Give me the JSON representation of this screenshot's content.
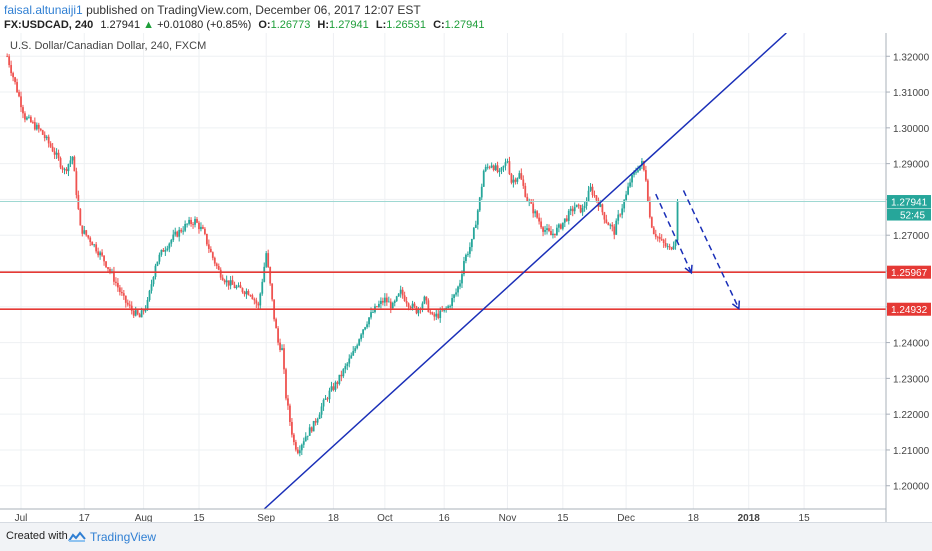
{
  "header": {
    "author": "faisal.altunaiji1",
    "published": "published on TradingView.com, December 06, 2017 12:07 EST"
  },
  "ohlc": {
    "symbol": "FX:USDCAD, 240",
    "last": "1.27941",
    "arrow": "▲",
    "change": "+0.01080 (+0.85%)",
    "o_label": "O:",
    "o": "1.26773",
    "h_label": "H:",
    "h": "1.27941",
    "l_label": "L:",
    "l": "1.26531",
    "c_label": "C:",
    "c": "1.27941"
  },
  "footer": {
    "created_with": "Created with",
    "brand": "TradingView",
    "logo_icon": "tradingview-logo-icon"
  },
  "colors": {
    "up": "#26a69a",
    "down": "#ef5350",
    "trend": "#1a2fb8",
    "level": "#e53935",
    "grid": "#eef0f3"
  },
  "chart_data": {
    "type": "candlestick",
    "title": "U.S. Dollar/Canadian Dollar, 240, FXCM",
    "ylim": [
      1.1935,
      1.3265
    ],
    "y_ticks": [
      "1.32000",
      "1.31000",
      "1.30000",
      "1.29000",
      "1.28000",
      "1.27000",
      "1.26000",
      "1.25000",
      "1.24000",
      "1.23000",
      "1.22000",
      "1.21000",
      "1.20000"
    ],
    "x_ticks": [
      {
        "label": "Jul",
        "day": 0
      },
      {
        "label": "17",
        "day": 16
      },
      {
        "label": "Aug",
        "day": 31
      },
      {
        "label": "15",
        "day": 45
      },
      {
        "label": "Sep",
        "day": 62
      },
      {
        "label": "18",
        "day": 79
      },
      {
        "label": "Oct",
        "day": 92
      },
      {
        "label": "16",
        "day": 107
      },
      {
        "label": "Nov",
        "day": 123
      },
      {
        "label": "15",
        "day": 137
      },
      {
        "label": "Dec",
        "day": 153
      },
      {
        "label": "18",
        "day": 170
      },
      {
        "label": "2018",
        "day": 184
      },
      {
        "label": "15",
        "day": 198
      }
    ],
    "path": [
      [
        -3.5,
        1.32
      ],
      [
        1,
        1.303
      ],
      [
        5,
        1.299
      ],
      [
        8,
        1.294
      ],
      [
        11,
        1.288
      ],
      [
        13,
        1.292
      ],
      [
        15,
        1.272
      ],
      [
        18,
        1.268
      ],
      [
        21,
        1.263
      ],
      [
        23,
        1.259
      ],
      [
        26,
        1.252
      ],
      [
        28,
        1.249
      ],
      [
        30,
        1.247
      ],
      [
        32,
        1.251
      ],
      [
        34,
        1.262
      ],
      [
        36,
        1.266
      ],
      [
        39,
        1.27
      ],
      [
        42,
        1.273
      ],
      [
        44,
        1.274
      ],
      [
        46,
        1.271
      ],
      [
        48,
        1.265
      ],
      [
        50,
        1.26
      ],
      [
        52,
        1.257
      ],
      [
        55,
        1.255
      ],
      [
        58,
        1.254
      ],
      [
        60,
        1.25
      ],
      [
        62,
        1.265
      ],
      [
        64,
        1.247
      ],
      [
        65,
        1.24
      ],
      [
        66,
        1.238
      ],
      [
        67,
        1.225
      ],
      [
        68,
        1.218
      ],
      [
        69,
        1.212
      ],
      [
        70,
        1.21
      ],
      [
        72,
        1.214
      ],
      [
        74,
        1.217
      ],
      [
        76,
        1.222
      ],
      [
        78,
        1.226
      ],
      [
        80,
        1.229
      ],
      [
        82,
        1.233
      ],
      [
        84,
        1.237
      ],
      [
        86,
        1.243
      ],
      [
        88,
        1.247
      ],
      [
        90,
        1.25
      ],
      [
        92,
        1.252
      ],
      [
        94,
        1.25
      ],
      [
        96,
        1.254
      ],
      [
        98,
        1.251
      ],
      [
        100,
        1.249
      ],
      [
        102,
        1.252
      ],
      [
        104,
        1.247
      ],
      [
        106,
        1.248
      ],
      [
        108,
        1.25
      ],
      [
        110,
        1.254
      ],
      [
        111,
        1.257
      ],
      [
        112,
        1.263
      ],
      [
        114,
        1.268
      ],
      [
        116,
        1.28
      ],
      [
        117,
        1.288
      ],
      [
        119,
        1.29
      ],
      [
        121,
        1.287
      ],
      [
        123,
        1.291
      ],
      [
        124,
        1.285
      ],
      [
        126,
        1.287
      ],
      [
        128,
        1.28
      ],
      [
        130,
        1.276
      ],
      [
        132,
        1.272
      ],
      [
        134,
        1.27
      ],
      [
        136,
        1.272
      ],
      [
        138,
        1.275
      ],
      [
        140,
        1.278
      ],
      [
        142,
        1.277
      ],
      [
        144,
        1.283
      ],
      [
        146,
        1.279
      ],
      [
        148,
        1.274
      ],
      [
        150,
        1.271
      ],
      [
        151,
        1.275
      ],
      [
        153,
        1.281
      ],
      [
        154,
        1.285
      ],
      [
        156,
        1.289
      ],
      [
        157,
        1.29
      ],
      [
        158,
        1.286
      ],
      [
        159,
        1.275
      ],
      [
        160,
        1.271
      ],
      [
        162,
        1.268
      ],
      [
        164,
        1.266
      ],
      [
        165,
        1.268
      ],
      [
        165.5,
        1.2694
      ],
      [
        166,
        1.27941
      ]
    ],
    "current_price": {
      "value": 1.27941,
      "label": "1.27941",
      "countdown": "52:45"
    },
    "levels": [
      {
        "value": 1.25967,
        "label": "1.25967"
      },
      {
        "value": 1.24932,
        "label": "1.24932"
      }
    ],
    "trendline": {
      "start": [
        61.5,
        1.1935
      ],
      "end": [
        193.5,
        1.3265
      ]
    },
    "projections": [
      {
        "start": [
          160.5,
          1.2815
        ],
        "end": [
          169.5,
          1.2595
        ]
      },
      {
        "start": [
          167.5,
          1.2825
        ],
        "end": [
          181.5,
          1.2495
        ]
      }
    ]
  }
}
